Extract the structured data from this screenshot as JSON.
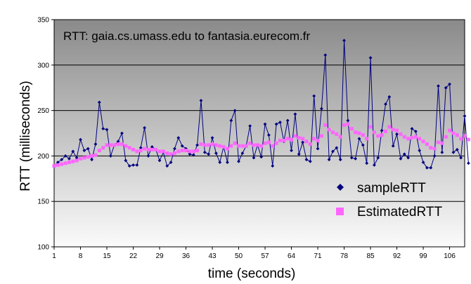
{
  "chart_data": {
    "type": "line",
    "title": "RTT: gaia.cs.umass.edu to fantasia.eurecom.fr",
    "xlabel": "time (seconds)",
    "ylabel": "RTT (milliseconds)",
    "ylim": [
      100,
      350
    ],
    "yticks": [
      "100",
      "150",
      "200",
      "250",
      "300",
      "350"
    ],
    "xticks": [
      {
        "x": 1,
        "label": "1"
      },
      {
        "x": 8,
        "label": "8"
      },
      {
        "x": 15,
        "label": "15"
      },
      {
        "x": 22,
        "label": "22"
      },
      {
        "x": 29,
        "label": "29"
      },
      {
        "x": 36,
        "label": "36"
      },
      {
        "x": 43,
        "label": "43"
      },
      {
        "x": 50,
        "label": "50"
      },
      {
        "x": 57,
        "label": "57"
      },
      {
        "x": 64,
        "label": "64"
      },
      {
        "x": 71,
        "label": "71"
      },
      {
        "x": 78,
        "label": "78"
      },
      {
        "x": 85,
        "label": "85"
      },
      {
        "x": 92,
        "label": "92"
      },
      {
        "x": 99,
        "label": "99"
      },
      {
        "x": 106,
        "label": "106"
      }
    ],
    "xlim": [
      1,
      110
    ],
    "grid": true,
    "legend_position": "bottom-right",
    "series": [
      {
        "name": "sampleRTT",
        "color": "#000080",
        "marker": "diamond",
        "line": true,
        "values": [
          189,
          193,
          196,
          200,
          197,
          205,
          198,
          218,
          206,
          208,
          196,
          213,
          259,
          230,
          229,
          200,
          212,
          216,
          225,
          195,
          189,
          190,
          190,
          209,
          231,
          200,
          210,
          207,
          195,
          204,
          189,
          193,
          208,
          220,
          211,
          208,
          202,
          201,
          212,
          261,
          204,
          202,
          220,
          203,
          193,
          210,
          193,
          239,
          250,
          194,
          203,
          211,
          233,
          198,
          212,
          199,
          235,
          223,
          189,
          235,
          237,
          216,
          239,
          206,
          246,
          202,
          215,
          196,
          194,
          266,
          208,
          252,
          311,
          196,
          205,
          209,
          196,
          327,
          239,
          198,
          197,
          219,
          212,
          192,
          308,
          190,
          198,
          228,
          257,
          265,
          211,
          224,
          197,
          202,
          198,
          230,
          227,
          206,
          193,
          187,
          187,
          200,
          277,
          204,
          275,
          279,
          204,
          207,
          198,
          244,
          192
        ]
      },
      {
        "name": "EstimatedRTT",
        "color": "#ff66ff",
        "marker": "square",
        "line": false,
        "values": [
          189,
          190,
          191,
          192,
          193,
          194,
          195,
          197,
          198,
          199,
          200,
          201,
          206,
          209,
          212,
          212,
          212,
          213,
          213,
          211,
          209,
          207,
          205,
          206,
          208,
          207,
          207,
          207,
          205,
          205,
          203,
          202,
          203,
          205,
          206,
          206,
          205,
          205,
          206,
          213,
          212,
          212,
          213,
          212,
          211,
          210,
          208,
          211,
          214,
          211,
          211,
          211,
          214,
          212,
          212,
          211,
          214,
          215,
          211,
          214,
          217,
          217,
          219,
          218,
          222,
          220,
          219,
          216,
          213,
          219,
          217,
          222,
          234,
          229,
          226,
          224,
          221,
          234,
          235,
          230,
          226,
          225,
          223,
          219,
          232,
          226,
          222,
          223,
          227,
          232,
          229,
          228,
          224,
          221,
          219,
          220,
          221,
          219,
          216,
          213,
          209,
          208,
          215,
          214,
          221,
          228,
          225,
          223,
          219,
          222,
          218
        ]
      }
    ]
  }
}
